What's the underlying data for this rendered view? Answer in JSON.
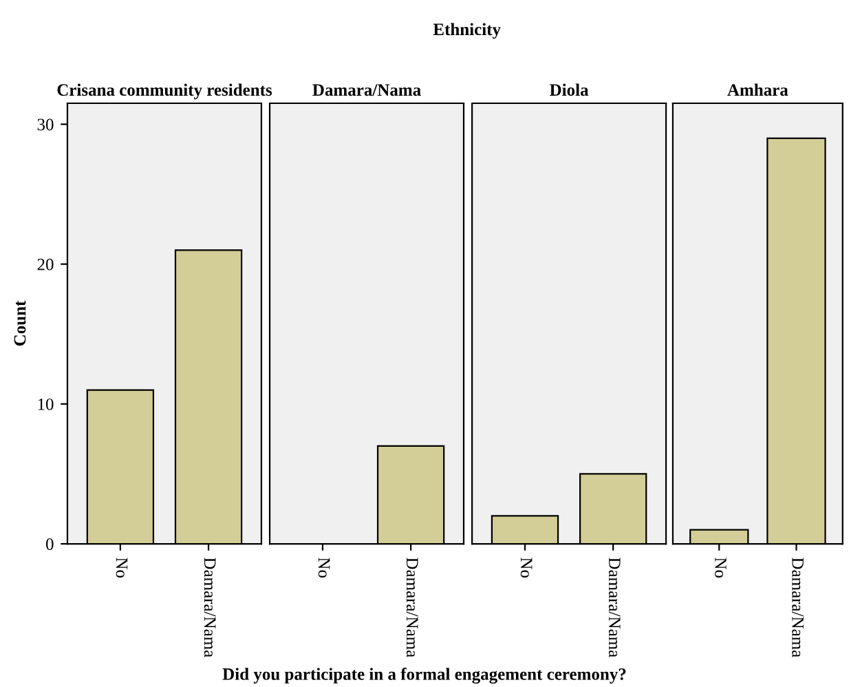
{
  "chart_data": [
    {
      "type": "bar",
      "title": "Crisana community residents",
      "annotations": [
        "Ethnicity"
      ],
      "xlabel": "Did you participate in a formal engagement ceremony?",
      "ylabel": "Count",
      "categories": [
        "No",
        "Damara/Nama"
      ],
      "values": [
        11,
        21
      ],
      "color": "#d3ce97",
      "ylim": [
        0,
        31.5
      ],
      "yticks": [
        0,
        10,
        20,
        30
      ],
      "grid": false
    },
    {
      "type": "bar",
      "title": "Damara/Nama",
      "categories": [
        "No",
        "Damara/Nama"
      ],
      "values": [
        null,
        7
      ],
      "color": "#d3ce97",
      "ylim": [
        0,
        31.5
      ],
      "yticks": [
        0,
        10,
        20,
        30
      ],
      "tick_labels": "x",
      "grid": false
    },
    {
      "type": "bar",
      "title": "Diola",
      "categories": [
        "No",
        "Damara/Nama"
      ],
      "values": [
        2,
        5
      ],
      "color": "#d3ce97",
      "ylim": [
        0,
        31.5
      ],
      "yticks": [
        0,
        10,
        20,
        30
      ],
      "tick_labels": "x",
      "grid": false
    },
    {
      "type": "bar",
      "title": "Amhara",
      "categories": [
        "No",
        "Damara/Nama"
      ],
      "values": [
        1,
        29
      ],
      "color": "#d3ce97",
      "ylim": [
        0,
        31.5
      ],
      "yticks": [
        0,
        10,
        20,
        30
      ],
      "tick_labels": "x",
      "grid": false
    }
  ]
}
